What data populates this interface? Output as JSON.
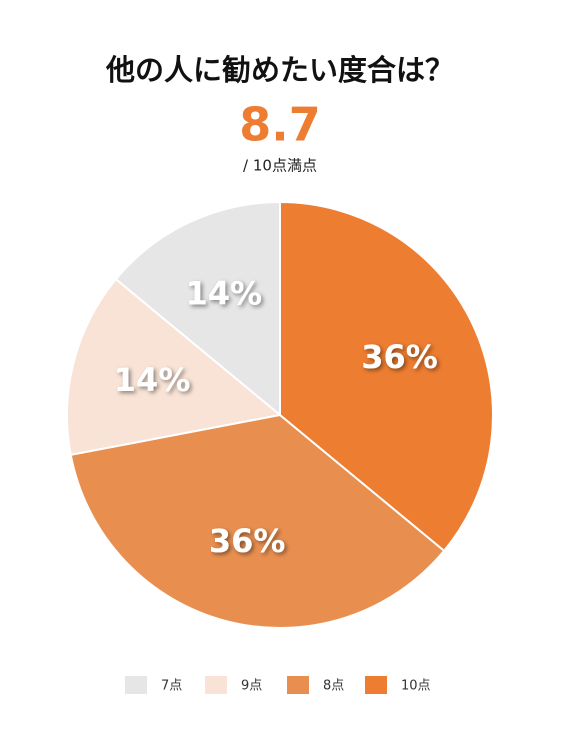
{
  "chart_data": {
    "type": "pie",
    "title": "他の人に勧めたい度合は？",
    "score": 8.7,
    "score_note": "/ 10点満点",
    "categories": [
      "7点",
      "9点",
      "8点",
      "10点"
    ],
    "values": [
      14,
      14,
      36,
      36
    ],
    "value_labels": [
      "14%",
      "14%",
      "36%",
      "36%"
    ],
    "colors": [
      "#e6e6e6",
      "#f9e3d6",
      "#e88f50",
      "#ed7d31"
    ],
    "score_color": "#ed7d31"
  }
}
